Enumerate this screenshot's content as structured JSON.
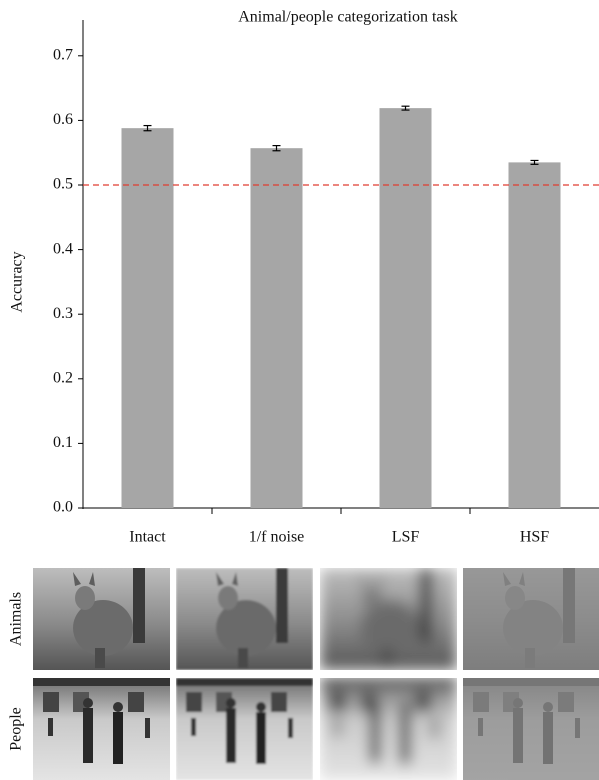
{
  "chart_data": {
    "type": "bar",
    "title": "Animal/people categorization task",
    "y_label": "Accuracy",
    "categories": [
      "Intact",
      "1/f noise",
      "LSF",
      "HSF"
    ],
    "values": [
      0.588,
      0.557,
      0.619,
      0.535
    ],
    "errors": [
      0.004,
      0.004,
      0.003,
      0.003
    ],
    "color": "#a6a6a6",
    "error_color": "#000000",
    "reference_line": 0.5,
    "reference_color": "#e03c31",
    "ylim": [
      0,
      0.75
    ],
    "yticks": [
      {
        "value": 0,
        "label": "0.0"
      },
      0.1,
      0.2,
      0.3,
      0.4,
      0.5,
      0.6,
      0.7
    ]
  },
  "image_grid": {
    "row_labels": [
      "Animals",
      "People"
    ]
  }
}
